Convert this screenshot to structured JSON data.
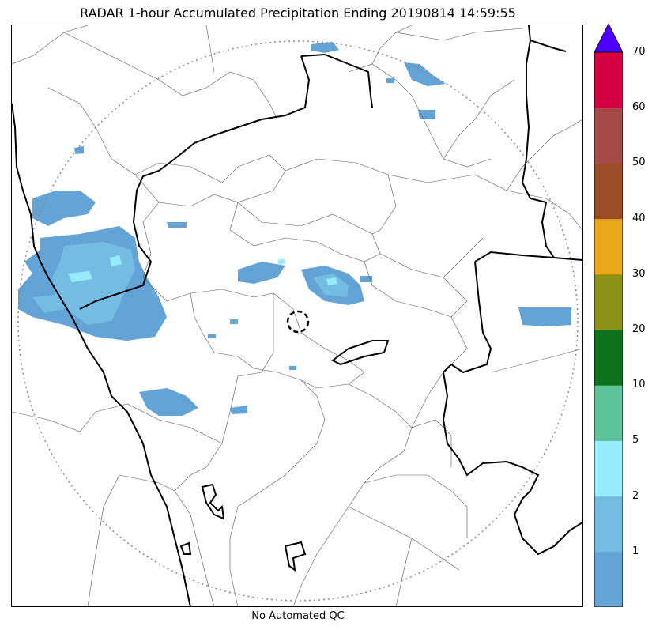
{
  "title": "RADAR 1-hour Accumulated Precipitation Ending 20190814 14:59:55",
  "qc_note": "No Automated QC",
  "legend": {
    "levels": [
      {
        "label": "",
        "color": "#63a3d6"
      },
      {
        "label": "1",
        "color": "#75bce3"
      },
      {
        "label": "2",
        "color": "#96ecfb"
      },
      {
        "label": "5",
        "color": "#5dc39a"
      },
      {
        "label": "10",
        "color": "#0e721c"
      },
      {
        "label": "20",
        "color": "#8b9217"
      },
      {
        "label": "30",
        "color": "#e8a817"
      },
      {
        "label": "40",
        "color": "#9a4d27"
      },
      {
        "label": "50",
        "color": "#a54b47"
      },
      {
        "label": "60",
        "color": "#d50043"
      }
    ],
    "top_label": "70",
    "overflow_color": "#4d00ff"
  },
  "colors": {
    "state_border": "#000000",
    "district_border": "#555555",
    "range_ring": "#888888",
    "light_rain": "#63a3d6",
    "moderate_rain": "#75bce3",
    "heavy_rain": "#96ecfb"
  }
}
